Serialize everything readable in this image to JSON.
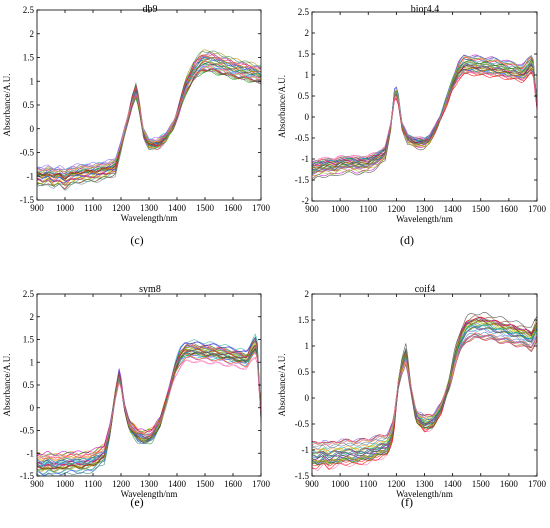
{
  "chart_data": [
    {
      "type": "line",
      "title": "db9",
      "caption": "(c)",
      "xlabel": "Wavelength/nm",
      "ylabel": "Absorbance/A.U.",
      "xlim": [
        900,
        1700
      ],
      "ylim": [
        -1.5,
        2.5
      ],
      "xticks": [
        900,
        1000,
        1100,
        1200,
        1300,
        1400,
        1500,
        1600,
        1700
      ],
      "yticks": [
        -1.5,
        -1,
        -0.5,
        0,
        0.5,
        1,
        1.5,
        2,
        2.5
      ],
      "ytick_labels": [
        "-1.5",
        "-1",
        "-0.5",
        "0",
        "0.5",
        "1",
        "1.5",
        "2",
        "2.5"
      ],
      "grid": false,
      "profile": {
        "x": [
          900,
          920,
          940,
          960,
          980,
          1000,
          1020,
          1050,
          1100,
          1150,
          1180,
          1200,
          1220,
          1240,
          1255,
          1265,
          1280,
          1300,
          1330,
          1360,
          1390,
          1410,
          1430,
          1460,
          1490,
          1520,
          1560,
          1600,
          1640,
          1680,
          1700
        ],
        "y": [
          -1.05,
          -1.08,
          -1.02,
          -1.1,
          -1.05,
          -1.12,
          -1.05,
          -1.0,
          -0.98,
          -0.92,
          -0.85,
          -0.4,
          0.1,
          0.6,
          0.85,
          0.5,
          -0.1,
          -0.35,
          -0.35,
          -0.2,
          0.1,
          0.5,
          0.9,
          1.25,
          1.45,
          1.45,
          1.38,
          1.3,
          1.25,
          1.2,
          1.15
        ]
      }
    },
    {
      "type": "line",
      "title": "bior4.4",
      "caption": "(d)",
      "xlabel": "Wavelength/nm",
      "ylabel": "Absorbance/A.U.",
      "xlim": [
        900,
        1700
      ],
      "ylim": [
        -2,
        2.5
      ],
      "xticks": [
        900,
        1000,
        1100,
        1200,
        1300,
        1400,
        1500,
        1600,
        1700
      ],
      "yticks": [
        -2,
        -1.5,
        -1,
        -0.5,
        0,
        0.5,
        1,
        1.5,
        2,
        2.5
      ],
      "ytick_labels": [
        "-2",
        "-1.5",
        "-1",
        "-0.5",
        "0",
        "0.5",
        "1",
        "1.5",
        "2",
        "2.5"
      ],
      "grid": false,
      "profile": {
        "x": [
          900,
          920,
          940,
          960,
          980,
          1000,
          1030,
          1060,
          1100,
          1130,
          1160,
          1180,
          1195,
          1205,
          1220,
          1240,
          1270,
          1300,
          1320,
          1350,
          1380,
          1400,
          1420,
          1440,
          1470,
          1500,
          1540,
          1580,
          1620,
          1650,
          1670,
          1685,
          1700
        ],
        "y": [
          -1.25,
          -1.2,
          -1.18,
          -1.15,
          -1.18,
          -1.12,
          -1.1,
          -1.12,
          -1.1,
          -1.0,
          -0.85,
          -0.2,
          0.65,
          0.5,
          -0.2,
          -0.5,
          -0.6,
          -0.6,
          -0.5,
          -0.1,
          0.4,
          0.8,
          1.1,
          1.25,
          1.25,
          1.22,
          1.2,
          1.15,
          1.1,
          1.05,
          1.2,
          1.3,
          0.3
        ]
      }
    },
    {
      "type": "line",
      "title": "sym8",
      "caption": "(e)",
      "xlabel": "Wavelength/nm",
      "ylabel": "Absorbance/A.U.",
      "xlim": [
        900,
        1700
      ],
      "ylim": [
        -1.5,
        2.5
      ],
      "xticks": [
        900,
        1000,
        1100,
        1200,
        1300,
        1400,
        1500,
        1600,
        1700
      ],
      "yticks": [
        -1.5,
        -1,
        -0.5,
        0,
        0.5,
        1,
        1.5,
        2,
        2.5
      ],
      "ytick_labels": [
        "-1.5",
        "-1",
        "-0.5",
        "0",
        "0.5",
        "1",
        "1.5",
        "2",
        "2.5"
      ],
      "grid": false,
      "profile": {
        "x": [
          900,
          920,
          940,
          960,
          980,
          1000,
          1030,
          1060,
          1100,
          1140,
          1160,
          1180,
          1195,
          1210,
          1230,
          1260,
          1290,
          1310,
          1340,
          1370,
          1390,
          1410,
          1430,
          1460,
          1500,
          1540,
          1580,
          1620,
          1650,
          1670,
          1685,
          1700
        ],
        "y": [
          -1.2,
          -1.25,
          -1.2,
          -1.25,
          -1.22,
          -1.2,
          -1.18,
          -1.2,
          -1.15,
          -1.0,
          -0.5,
          0.3,
          0.75,
          0.1,
          -0.4,
          -0.6,
          -0.65,
          -0.6,
          -0.3,
          0.3,
          0.8,
          1.1,
          1.25,
          1.25,
          1.22,
          1.2,
          1.15,
          1.1,
          1.05,
          1.3,
          1.4,
          -0.2
        ]
      }
    },
    {
      "type": "line",
      "title": "coif4",
      "caption": "(f)",
      "xlabel": "Wavelength/nm",
      "ylabel": "Absorbance/A.U.",
      "xlim": [
        900,
        1700
      ],
      "ylim": [
        -1.5,
        2
      ],
      "xticks": [
        900,
        1000,
        1100,
        1200,
        1300,
        1400,
        1500,
        1600,
        1700
      ],
      "yticks": [
        -1.5,
        -1,
        -0.5,
        0,
        0.5,
        1,
        1.5,
        2
      ],
      "ytick_labels": [
        "-1.5",
        "-1",
        "-0.5",
        "0",
        "0.5",
        "1",
        "1.5",
        "2"
      ],
      "grid": false,
      "profile": {
        "x": [
          900,
          920,
          940,
          960,
          980,
          1000,
          1030,
          1060,
          1100,
          1140,
          1170,
          1190,
          1205,
          1220,
          1235,
          1250,
          1270,
          1300,
          1330,
          1360,
          1390,
          1410,
          1430,
          1450,
          1480,
          1510,
          1550,
          1590,
          1630,
          1660,
          1680,
          1700
        ],
        "y": [
          -1.1,
          -1.12,
          -1.05,
          -1.12,
          -1.08,
          -1.05,
          -1.05,
          -1.05,
          -1.02,
          -0.95,
          -0.9,
          -0.6,
          0.2,
          0.6,
          0.85,
          0.2,
          -0.35,
          -0.5,
          -0.45,
          -0.2,
          0.3,
          0.8,
          1.1,
          1.3,
          1.35,
          1.35,
          1.3,
          1.25,
          1.2,
          1.15,
          1.1,
          1.3
        ]
      }
    }
  ],
  "series_colors": [
    "#1f3fff",
    "#00a000",
    "#ff0000",
    "#00bfbf",
    "#bf00bf",
    "#bfbf00",
    "#404040",
    "#ff8c00",
    "#7b68ee",
    "#2e8b57",
    "#dc143c",
    "#4682b4",
    "#9acd32",
    "#8b4513",
    "#708090",
    "#ff69b4",
    "#20b2aa",
    "#b8860b"
  ]
}
